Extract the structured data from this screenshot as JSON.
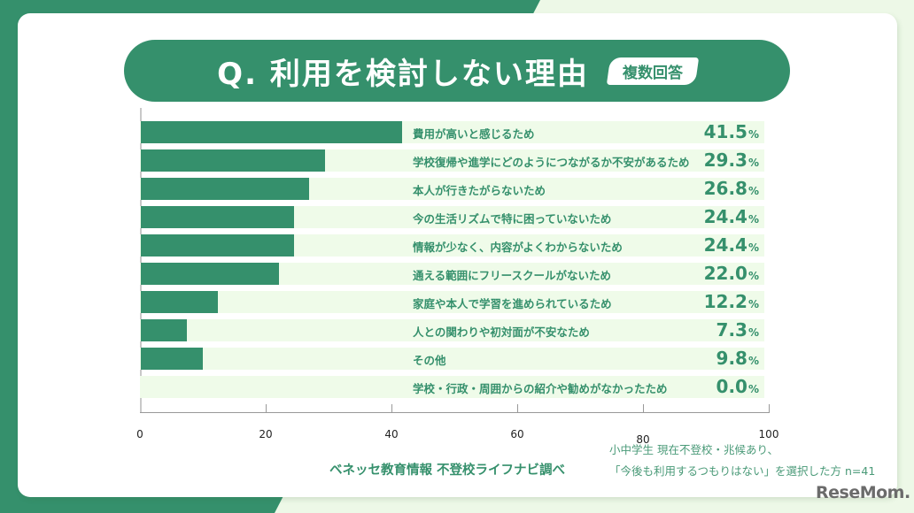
{
  "colors": {
    "accent": "#35906c",
    "row_background": "#effbe9",
    "page_background": "#edf8e7",
    "card": "#ffffff"
  },
  "header": {
    "title": "Q. 利用を検討しない理由",
    "badge": "複数回答"
  },
  "rows": [
    {
      "label": "費用が高いと感じるため",
      "value": "41.5",
      "unit": "%"
    },
    {
      "label": "学校復帰や進学にどのようにつながるか不安があるため",
      "value": "29.3",
      "unit": "%"
    },
    {
      "label": "本人が行きたがらないため",
      "value": "26.8",
      "unit": "%"
    },
    {
      "label": "今の生活リズムで特に困っていないため",
      "value": "24.4",
      "unit": "%"
    },
    {
      "label": "情報が少なく、内容がよくわからないため",
      "value": "24.4",
      "unit": "%"
    },
    {
      "label": "通える範囲にフリースクールがないため",
      "value": "22.0",
      "unit": "%"
    },
    {
      "label": "家庭や本人で学習を進められているため",
      "value": "12.2",
      "unit": "%"
    },
    {
      "label": "人との関わりや初対面が不安なため",
      "value": "7.3",
      "unit": "%"
    },
    {
      "label": "その他",
      "value": "9.8",
      "unit": "%"
    },
    {
      "label": "学校・行政・周囲からの紹介や勧めがなかったため",
      "value": "0.0",
      "unit": "%"
    }
  ],
  "axis": {
    "ticks": [
      "0",
      "20",
      "40",
      "60",
      "80",
      "100"
    ]
  },
  "footer": {
    "source": "ベネッセ教育情報 不登校ライフナビ調べ",
    "note_line1": "小中学生 現在不登校・兆候あり、",
    "note_line2": "「今後も利用するつもりはない」を選択した方 n=41",
    "logo": "ReseMom."
  },
  "chart_data": {
    "type": "bar",
    "orientation": "horizontal",
    "title": "Q. 利用を検討しない理由",
    "subtitle": "複数回答",
    "categories": [
      "費用が高いと感じるため",
      "学校復帰や進学にどのようにつながるか不安があるため",
      "本人が行きたがらないため",
      "今の生活リズムで特に困っていないため",
      "情報が少なく、内容がよくわからないため",
      "通える範囲にフリースクールがないため",
      "家庭や本人で学習を進められているため",
      "人との関わりや初対面が不安なため",
      "その他",
      "学校・行政・周囲からの紹介や勧めがなかったため"
    ],
    "values": [
      41.5,
      29.3,
      26.8,
      24.4,
      24.4,
      22.0,
      12.2,
      7.3,
      9.8,
      0.0
    ],
    "unit": "%",
    "xlabel": "",
    "ylabel": "",
    "xlim": [
      0,
      100
    ],
    "xticks": [
      0,
      20,
      40,
      60,
      80,
      100
    ],
    "grid": false,
    "legend": null,
    "annotations": [
      "ベネッセ教育情報 不登校ライフナビ調べ",
      "小中学生 現在不登校・兆候あり、「今後も利用するつもりはない」を選択した方 n=41"
    ]
  }
}
